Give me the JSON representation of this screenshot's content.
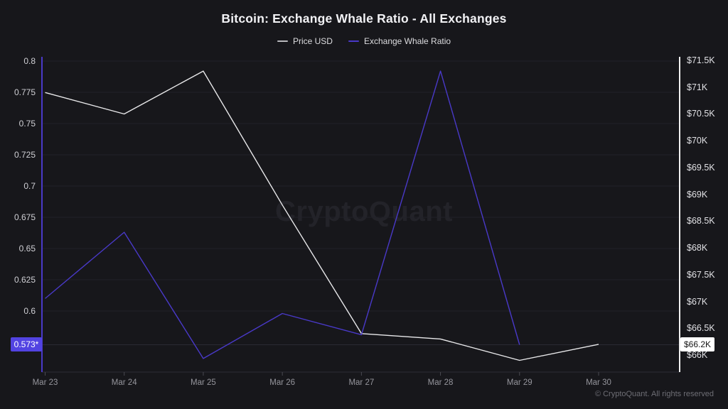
{
  "title": "Bitcoin: Exchange Whale Ratio - All Exchanges",
  "legend": [
    {
      "label": "Price USD",
      "color": "#b9b9bd"
    },
    {
      "label": "Exchange Whale Ratio",
      "color": "#4939c8"
    }
  ],
  "watermark": "CryptoQuant",
  "footer": {
    "copyright": "© CryptoQuant. All rights reserved"
  },
  "axes": {
    "left": {
      "series": "Exchange Whale Ratio",
      "tick_labels": [
        "0.8",
        "0.775",
        "0.75",
        "0.725",
        "0.7",
        "0.675",
        "0.65",
        "0.625",
        "0.6"
      ],
      "tick_values": [
        0.8,
        0.775,
        0.75,
        0.725,
        0.7,
        0.675,
        0.65,
        0.625,
        0.6
      ],
      "highlight": {
        "label": "0.573*",
        "value": 0.573,
        "bg": "#5243e2",
        "text_color": "#ffffff"
      }
    },
    "right": {
      "series": "Price USD",
      "tick_labels": [
        "$71.5K",
        "$71K",
        "$70.5K",
        "$70K",
        "$69.5K",
        "$69K",
        "$68.5K",
        "$68K",
        "$67.5K",
        "$67K",
        "$66.5K",
        "$66K"
      ],
      "tick_values": [
        71.5,
        71,
        70.5,
        70,
        69.5,
        69,
        68.5,
        68,
        67.5,
        67,
        66.5,
        66
      ],
      "highlight": {
        "label": "$66.2K",
        "value": 66.2,
        "bg": "#ffffff",
        "text_color": "#141414"
      }
    },
    "x": {
      "tick_labels": [
        "Mar 23",
        "Mar 24",
        "Mar 25",
        "Mar 26",
        "Mar 27",
        "Mar 28",
        "Mar 29",
        "Mar 30"
      ]
    }
  },
  "chart_data": {
    "type": "line",
    "title": "Bitcoin: Exchange Whale Ratio - All Exchanges",
    "x": [
      "Mar 23",
      "Mar 24",
      "Mar 25",
      "Mar 26",
      "Mar 27",
      "Mar 28",
      "Mar 29",
      "Mar 30"
    ],
    "series": [
      {
        "name": "Price USD",
        "yaxis": "right",
        "color": "#e8e8ea",
        "unit": "USD thousands",
        "values": [
          70.9,
          70.5,
          71.3,
          68.8,
          66.4,
          66.3,
          65.9,
          66.2
        ]
      },
      {
        "name": "Exchange Whale Ratio",
        "yaxis": "left",
        "color": "#4939c8",
        "unit": "ratio",
        "values": [
          0.61,
          0.663,
          0.562,
          0.598,
          0.581,
          0.792,
          0.573,
          null
        ]
      }
    ],
    "left_axis_range": [
      0.56,
      0.8
    ],
    "right_axis_range": [
      66,
      71.5
    ],
    "latest_values": {
      "exchange_whale_ratio": "0.573*",
      "price_usd": "$66.2K"
    },
    "grid": "horizontal lines aligned to left-axis ticks",
    "legend_position": "top-center"
  },
  "colors": {
    "background": "#17171b",
    "gridline": "#222229",
    "highlight_gridline": "#2a2a33",
    "price_line": "#e8e8ea",
    "whale_line": "#4939c8",
    "left_axis_line": "#4939c8",
    "right_axis_line": "#f0f0f0",
    "x_axis_line": "#2e2e35",
    "x_tick_mark": "#4a4a52"
  }
}
